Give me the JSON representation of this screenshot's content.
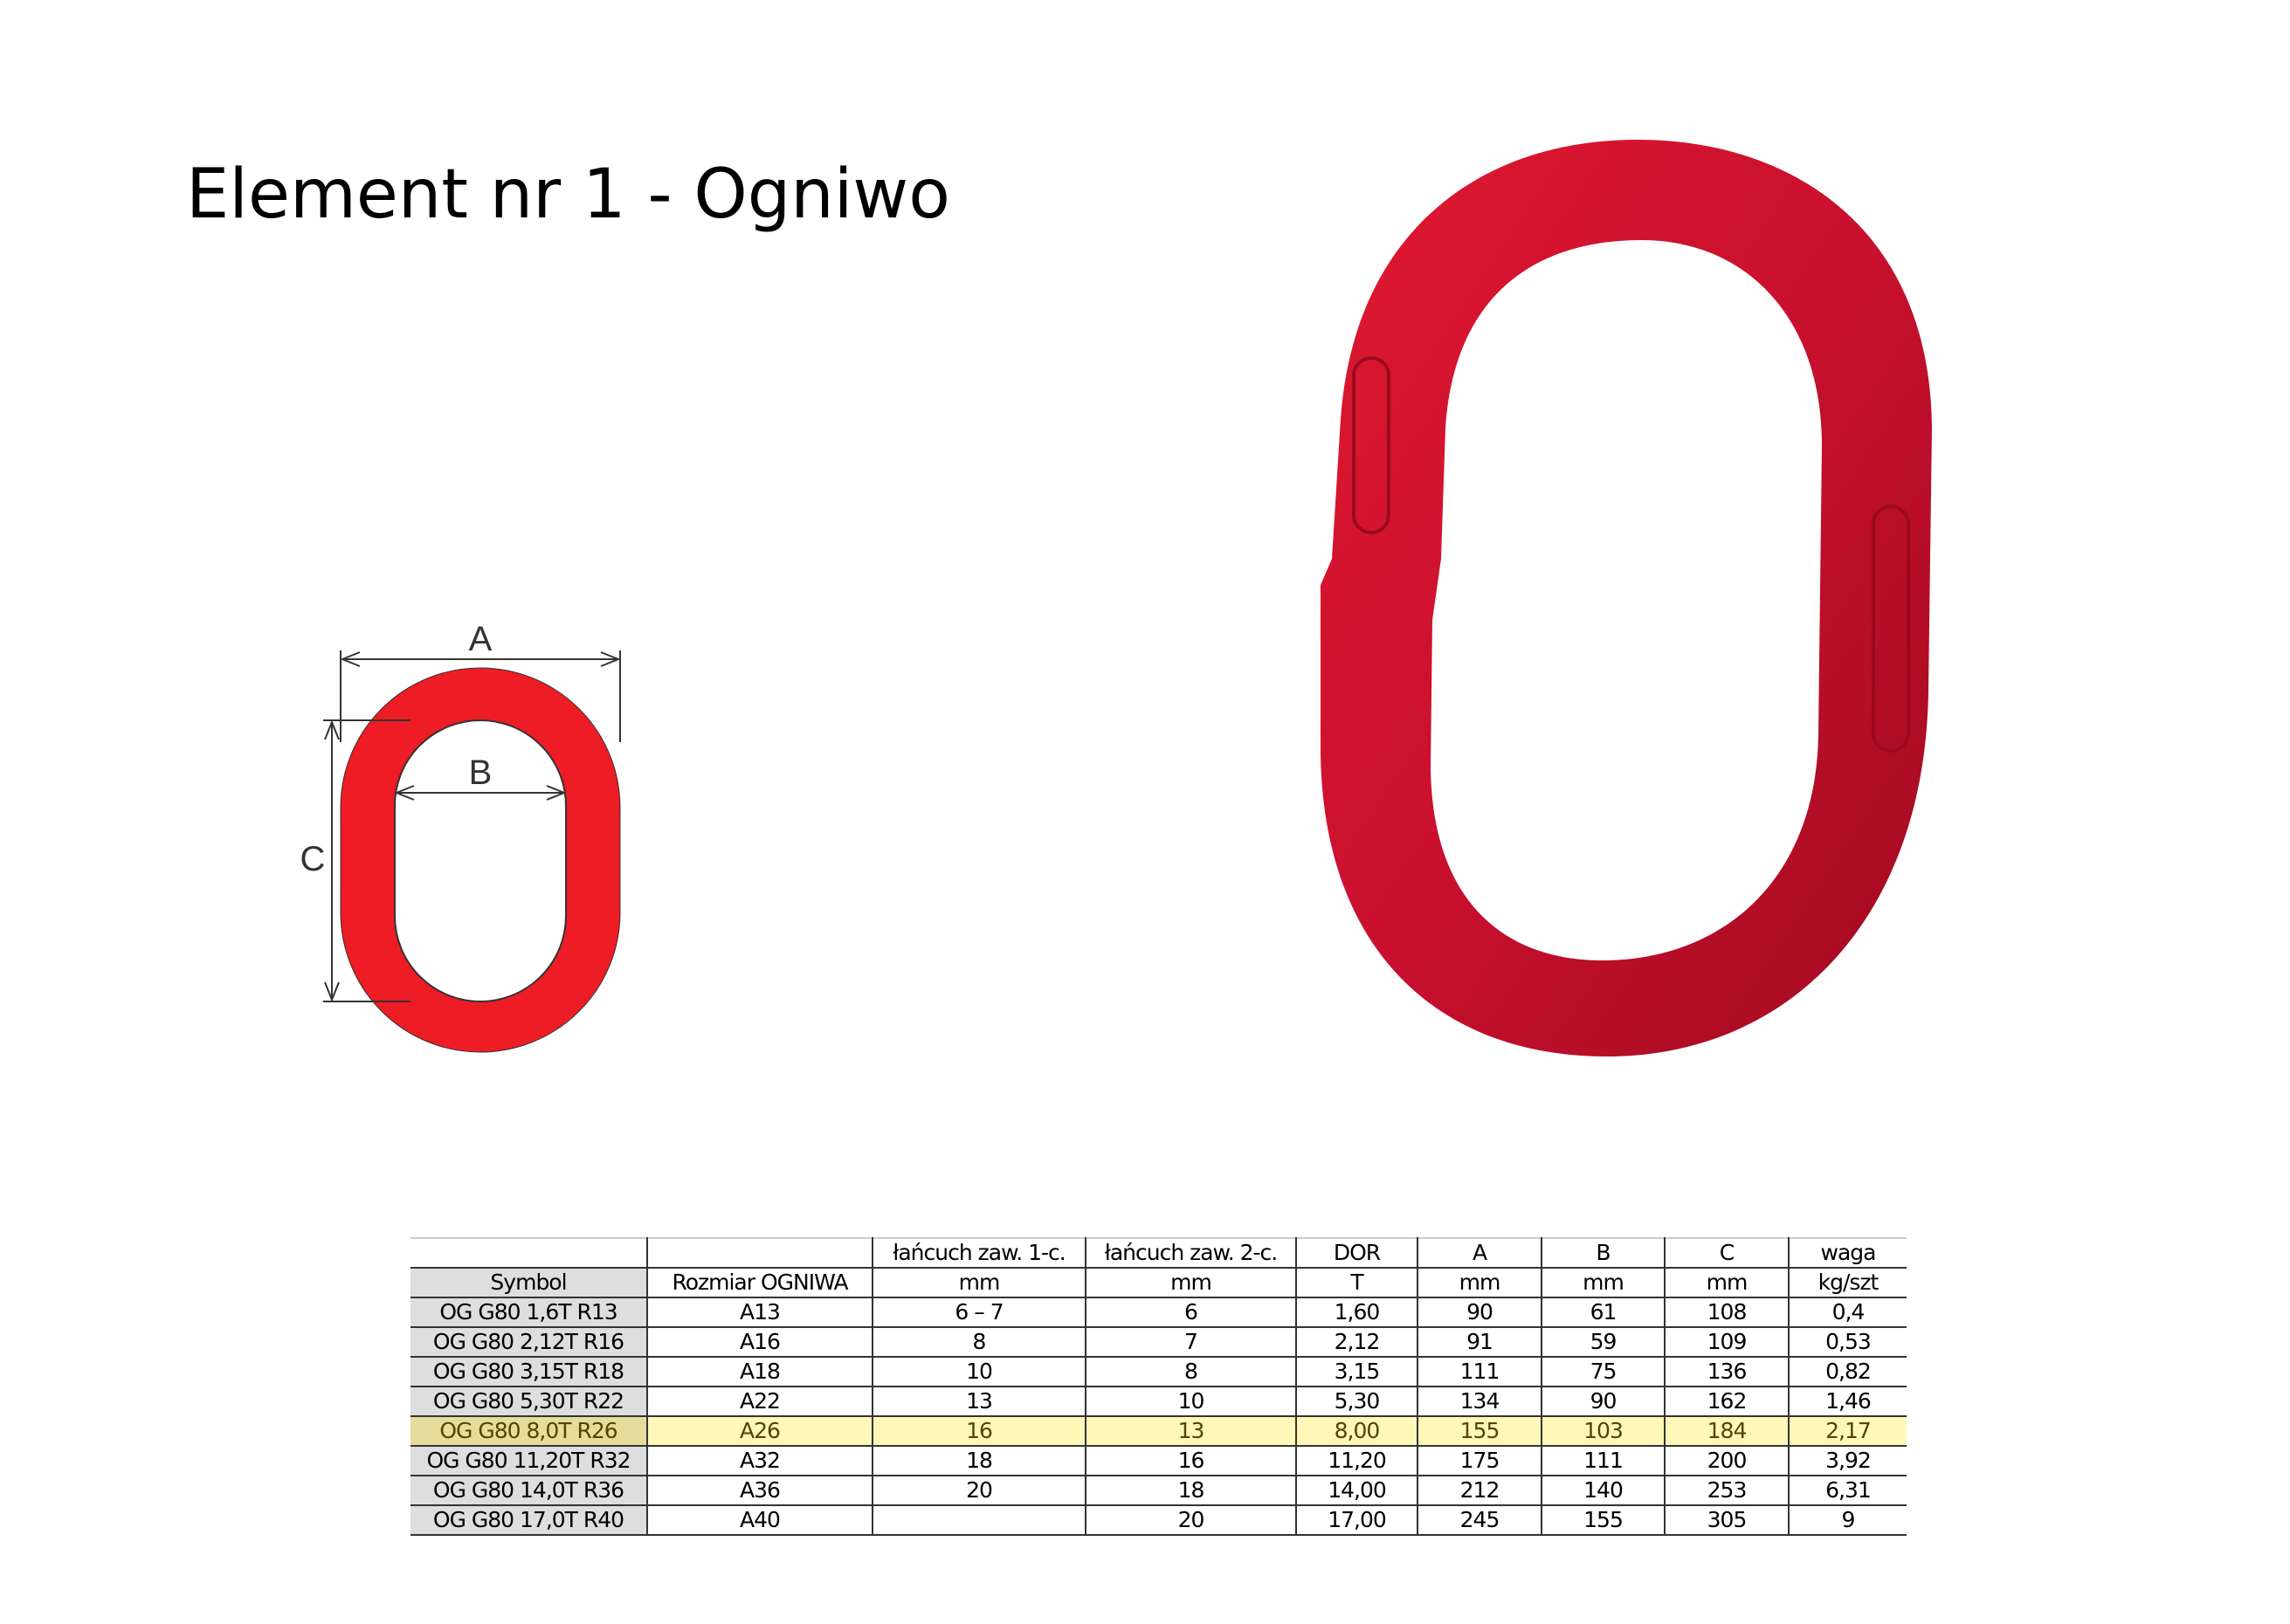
{
  "title": "Element nr 1 - Ogniwo",
  "diagram": {
    "label_a": "A",
    "label_b": "B",
    "label_c": "C",
    "color": "#ee1c25"
  },
  "photo": {
    "color": "#c8102e"
  },
  "table": {
    "header_row1": [
      "",
      "",
      "łańcuch zaw. 1-c.",
      "łańcuch zaw. 2-c.",
      "DOR",
      "A",
      "B",
      "C",
      "waga"
    ],
    "header_row2": [
      "Symbol",
      "Rozmiar OGNIWA",
      "mm",
      "mm",
      "T",
      "mm",
      "mm",
      "mm",
      "kg/szt"
    ],
    "highlight_color": "#fff8b8",
    "rows": [
      [
        "OG G80 1,6T R13",
        "A13",
        "6 – 7",
        "6",
        "1,60",
        "90",
        "61",
        "108",
        "0,4"
      ],
      [
        "OG G80 2,12T R16",
        "A16",
        "8",
        "7",
        "2,12",
        "91",
        "59",
        "109",
        "0,53"
      ],
      [
        "OG G80 3,15T R18",
        "A18",
        "10",
        "8",
        "3,15",
        "111",
        "75",
        "136",
        "0,82"
      ],
      [
        "OG G80 5,30T R22",
        "A22",
        "13",
        "10",
        "5,30",
        "134",
        "90",
        "162",
        "1,46"
      ],
      [
        "OG G80 8,0T R26",
        "A26",
        "16",
        "13",
        "8,00",
        "155",
        "103",
        "184",
        "2,17"
      ],
      [
        "OG G80 11,20T R32",
        "A32",
        "18",
        "16",
        "11,20",
        "175",
        "111",
        "200",
        "3,92"
      ],
      [
        "OG G80 14,0T R36",
        "A36",
        "20",
        "18",
        "14,00",
        "212",
        "140",
        "253",
        "6,31"
      ],
      [
        "OG G80 17,0T R40",
        "A40",
        "",
        "20",
        "17,00",
        "245",
        "155",
        "305",
        "9"
      ]
    ],
    "highlighted_row": 4
  }
}
